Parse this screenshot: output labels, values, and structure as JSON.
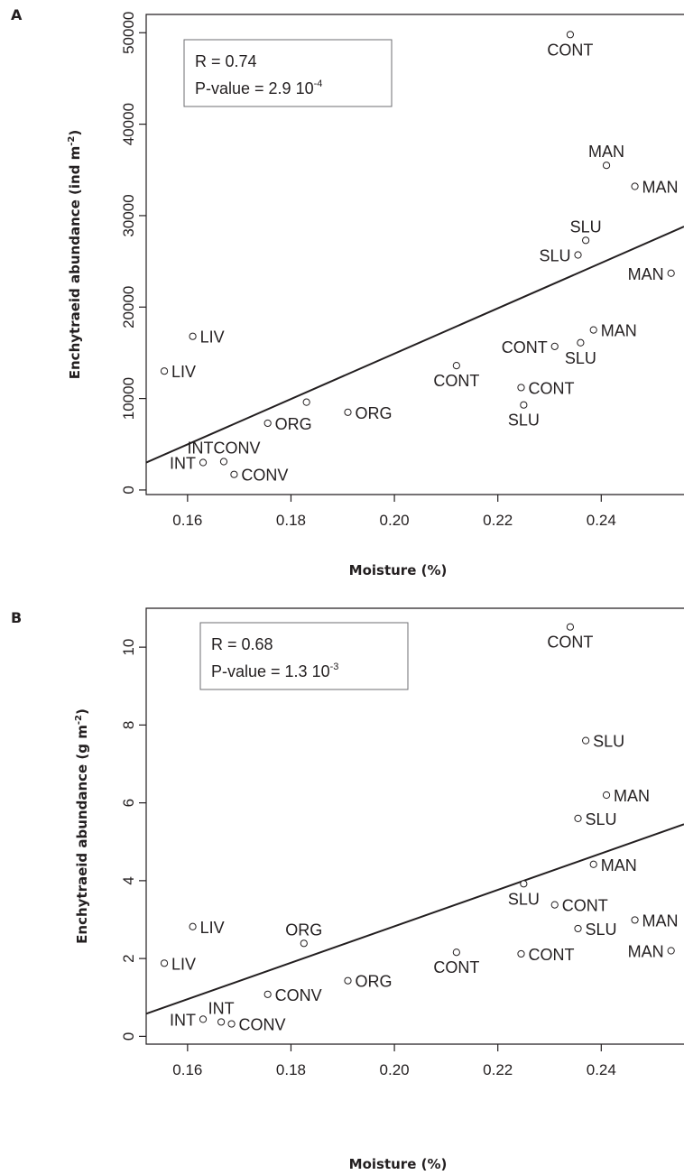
{
  "chart_data": [
    {
      "type": "scatter",
      "panel_label": "A",
      "xlabel": "Moisture (%)",
      "ylabel_main": "Enchytraeid abundance (ind m",
      "ylabel_sup": "-2",
      "ylabel_end": ")",
      "xlim": [
        0.152,
        0.256
      ],
      "ylim": [
        -500,
        52000
      ],
      "xticks": [
        0.16,
        0.18,
        0.2,
        0.22,
        0.24
      ],
      "xtick_labels": [
        "0.16",
        "0.18",
        "0.20",
        "0.22",
        "0.24"
      ],
      "yticks": [
        0,
        10000,
        20000,
        30000,
        40000,
        50000
      ],
      "ytick_labels": [
        "0",
        "10000",
        "20000",
        "30000",
        "40000",
        "50000"
      ],
      "stats": {
        "r_text": "R = 0.74",
        "p_text_main": "P-value =  2.9 10",
        "p_text_exp": "-4"
      },
      "regression": {
        "x": [
          0.152,
          0.256
        ],
        "y": [
          3000,
          28800
        ]
      },
      "points": [
        {
          "x": 0.234,
          "y": 49800,
          "label": "CONT",
          "pos": "below"
        },
        {
          "x": 0.241,
          "y": 35500,
          "label": "MAN",
          "pos": "above"
        },
        {
          "x": 0.2465,
          "y": 33200,
          "label": "MAN",
          "pos": "right"
        },
        {
          "x": 0.237,
          "y": 27300,
          "label": "SLU",
          "pos": "above"
        },
        {
          "x": 0.2355,
          "y": 25700,
          "label": "SLU",
          "pos": "left"
        },
        {
          "x": 0.2535,
          "y": 23700,
          "label": "MAN",
          "pos": "left"
        },
        {
          "x": 0.2385,
          "y": 17500,
          "label": "MAN",
          "pos": "right"
        },
        {
          "x": 0.231,
          "y": 15700,
          "label": "CONT",
          "pos": "left"
        },
        {
          "x": 0.236,
          "y": 16100,
          "label": "SLU",
          "pos": "below"
        },
        {
          "x": 0.212,
          "y": 13600,
          "label": "CONT",
          "pos": "below"
        },
        {
          "x": 0.2245,
          "y": 11200,
          "label": "CONT",
          "pos": "right"
        },
        {
          "x": 0.225,
          "y": 9300,
          "label": "SLU",
          "pos": "below"
        },
        {
          "x": 0.161,
          "y": 16800,
          "label": "LIV",
          "pos": "right"
        },
        {
          "x": 0.1555,
          "y": 13000,
          "label": "LIV",
          "pos": "right"
        },
        {
          "x": 0.183,
          "y": 9600,
          "label": "",
          "pos": "none"
        },
        {
          "x": 0.1755,
          "y": 7300,
          "label": "ORG",
          "pos": "right"
        },
        {
          "x": 0.191,
          "y": 8500,
          "label": "ORG",
          "pos": "right"
        },
        {
          "x": 0.167,
          "y": 3100,
          "label": "INTCONV",
          "pos": "above"
        },
        {
          "x": 0.163,
          "y": 3000,
          "label": "INT",
          "pos": "left"
        },
        {
          "x": 0.169,
          "y": 1700,
          "label": "CONV",
          "pos": "right"
        }
      ]
    },
    {
      "type": "scatter",
      "panel_label": "B",
      "xlabel": "Moisture (%)",
      "ylabel_main": "Enchytraeid abundance (g m",
      "ylabel_sup": "-2",
      "ylabel_end": ")",
      "xlim": [
        0.152,
        0.256
      ],
      "ylim": [
        -0.2,
        11.0
      ],
      "xticks": [
        0.16,
        0.18,
        0.2,
        0.22,
        0.24
      ],
      "xtick_labels": [
        "0.16",
        "0.18",
        "0.20",
        "0.22",
        "0.24"
      ],
      "yticks": [
        0,
        2,
        4,
        6,
        8,
        10
      ],
      "ytick_labels": [
        "0",
        "2",
        "4",
        "6",
        "8",
        "10"
      ],
      "stats": {
        "r_text": "R = 0.68",
        "p_text_main": "P-value =  1.3 10",
        "p_text_exp": "-3"
      },
      "regression": {
        "x": [
          0.152,
          0.256
        ],
        "y": [
          0.58,
          5.45
        ]
      },
      "points": [
        {
          "x": 0.234,
          "y": 10.52,
          "label": "CONT",
          "pos": "below"
        },
        {
          "x": 0.237,
          "y": 7.6,
          "label": "SLU",
          "pos": "right"
        },
        {
          "x": 0.241,
          "y": 6.2,
          "label": "MAN",
          "pos": "right"
        },
        {
          "x": 0.2355,
          "y": 5.6,
          "label": "SLU",
          "pos": "right"
        },
        {
          "x": 0.2385,
          "y": 4.42,
          "label": "MAN",
          "pos": "right"
        },
        {
          "x": 0.225,
          "y": 3.92,
          "label": "SLU",
          "pos": "below"
        },
        {
          "x": 0.231,
          "y": 3.38,
          "label": "CONT",
          "pos": "right"
        },
        {
          "x": 0.2465,
          "y": 2.99,
          "label": "MAN",
          "pos": "right"
        },
        {
          "x": 0.2355,
          "y": 2.77,
          "label": "SLU",
          "pos": "right"
        },
        {
          "x": 0.2535,
          "y": 2.2,
          "label": "MAN",
          "pos": "left"
        },
        {
          "x": 0.2245,
          "y": 2.12,
          "label": "CONT",
          "pos": "right"
        },
        {
          "x": 0.212,
          "y": 2.16,
          "label": "CONT",
          "pos": "below"
        },
        {
          "x": 0.161,
          "y": 2.82,
          "label": "LIV",
          "pos": "right"
        },
        {
          "x": 0.1555,
          "y": 1.88,
          "label": "LIV",
          "pos": "right"
        },
        {
          "x": 0.1825,
          "y": 2.39,
          "label": "ORG",
          "pos": "above"
        },
        {
          "x": 0.191,
          "y": 1.43,
          "label": "ORG",
          "pos": "right"
        },
        {
          "x": 0.1755,
          "y": 1.08,
          "label": "CONV",
          "pos": "right"
        },
        {
          "x": 0.163,
          "y": 0.44,
          "label": "INT",
          "pos": "left"
        },
        {
          "x": 0.1665,
          "y": 0.37,
          "label": "INT",
          "pos": "above"
        },
        {
          "x": 0.1685,
          "y": 0.32,
          "label": "CONV",
          "pos": "right"
        }
      ]
    }
  ]
}
